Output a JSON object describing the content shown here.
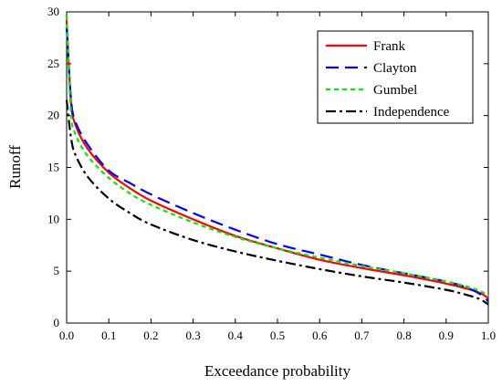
{
  "chart_data": {
    "type": "line",
    "xlabel": "Exceedance probability",
    "ylabel": "Runoff",
    "xlim": [
      0.0,
      1.0
    ],
    "ylim": [
      0,
      30
    ],
    "x_ticks": [
      "0.0",
      "0.1",
      "0.2",
      "0.3",
      "0.4",
      "0.5",
      "0.6",
      "0.7",
      "0.8",
      "0.9",
      "1.0"
    ],
    "y_ticks": [
      "0",
      "5",
      "10",
      "15",
      "20",
      "25",
      "30"
    ],
    "grid": false,
    "legend_position": "top-right",
    "x": [
      0.0,
      0.01,
      0.02,
      0.05,
      0.1,
      0.15,
      0.2,
      0.3,
      0.4,
      0.5,
      0.6,
      0.7,
      0.8,
      0.9,
      0.95,
      0.98,
      1.0
    ],
    "series": [
      {
        "name": "Frank",
        "color": "#ff0000",
        "dash": "solid",
        "values": [
          29.2,
          21.5,
          19.2,
          16.8,
          14.5,
          13.0,
          11.8,
          10.0,
          8.4,
          7.2,
          6.1,
          5.3,
          4.6,
          3.8,
          3.3,
          2.9,
          2.4
        ]
      },
      {
        "name": "Clayton",
        "color": "#0000ff",
        "dash": "dashed",
        "values": [
          28.5,
          21.8,
          19.5,
          17.2,
          14.7,
          13.5,
          12.4,
          10.6,
          9.0,
          7.6,
          6.6,
          5.6,
          4.8,
          4.0,
          3.4,
          2.8,
          2.1
        ]
      },
      {
        "name": "Gumbel",
        "color": "#00ee00",
        "dash": "dotted",
        "values": [
          29.6,
          20.5,
          18.3,
          16.1,
          14.0,
          12.5,
          11.4,
          9.7,
          8.3,
          7.2,
          6.3,
          5.5,
          4.8,
          4.0,
          3.5,
          3.1,
          2.6
        ]
      },
      {
        "name": "Independence",
        "color": "#000000",
        "dash": "dashdot",
        "values": [
          21.5,
          18.0,
          16.3,
          14.1,
          12.0,
          10.6,
          9.5,
          8.0,
          6.9,
          6.0,
          5.2,
          4.5,
          3.9,
          3.2,
          2.7,
          2.3,
          1.8
        ]
      }
    ]
  }
}
